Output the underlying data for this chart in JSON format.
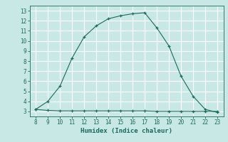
{
  "xlabel": "Humidex (Indice chaleur)",
  "x_main": [
    8,
    9,
    10,
    11,
    12,
    13,
    14,
    15,
    16,
    17,
    18,
    19,
    20,
    21,
    22,
    23
  ],
  "y_main": [
    3.2,
    4.0,
    5.5,
    8.3,
    10.4,
    11.5,
    12.2,
    12.5,
    12.7,
    12.8,
    11.3,
    9.5,
    6.5,
    4.5,
    3.2,
    2.9
  ],
  "x_flat": [
    8,
    9,
    10,
    11,
    12,
    13,
    14,
    15,
    16,
    17,
    18,
    19,
    20,
    21,
    22,
    23
  ],
  "y_flat": [
    3.2,
    3.1,
    3.05,
    3.05,
    3.05,
    3.05,
    3.05,
    3.05,
    3.05,
    3.05,
    3.0,
    3.0,
    3.0,
    3.0,
    3.0,
    3.0
  ],
  "line_color": "#1a6b5a",
  "bg_color": "#c8e8e5",
  "grid_color": "#b0d8d4",
  "xlim": [
    7.5,
    23.5
  ],
  "ylim": [
    2.5,
    13.5
  ],
  "xticks": [
    8,
    9,
    10,
    11,
    12,
    13,
    14,
    15,
    16,
    17,
    18,
    19,
    20,
    21,
    22,
    23
  ],
  "yticks": [
    3,
    4,
    5,
    6,
    7,
    8,
    9,
    10,
    11,
    12,
    13
  ],
  "tick_fontsize": 5.5,
  "label_fontsize": 6.5
}
